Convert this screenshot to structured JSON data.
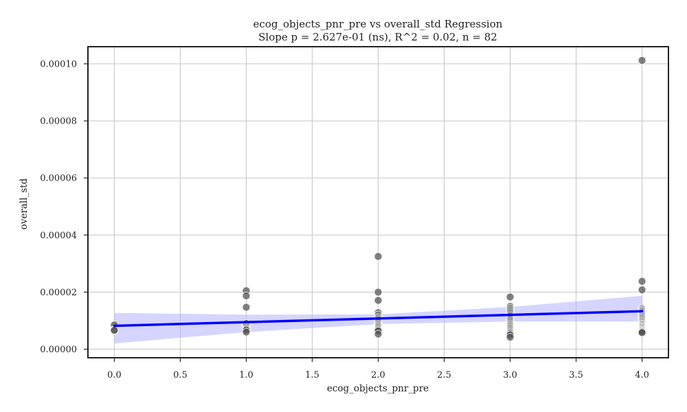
{
  "chart_data": {
    "type": "scatter",
    "title": "ecog_objects_pnr_pre vs overall_std Regression",
    "subtitle": "Slope p = 2.627e-01 (ns), R^2 = 0.02, n = 82",
    "xlabel": "ecog_objects_pnr_pre",
    "ylabel": "overall_std",
    "xlim": [
      -0.2,
      4.2
    ],
    "ylim": [
      -3e-06,
      0.000106
    ],
    "xticks": [
      "0.0",
      "0.5",
      "1.0",
      "1.5",
      "2.0",
      "2.5",
      "3.0",
      "3.5",
      "4.0"
    ],
    "yticks": [
      "0.00000",
      "0.00002",
      "0.00004",
      "0.00006",
      "0.00008",
      "0.00010"
    ],
    "grid": true,
    "colors": {
      "points": "#555555",
      "regression_line": "#0000ff",
      "confidence_band": "#b3b3ff",
      "grid": "#cccccc"
    },
    "points": [
      {
        "x": 0,
        "y": 8.5e-06
      },
      {
        "x": 0,
        "y": 6.8e-06
      },
      {
        "x": 0,
        "y": 6.6e-06
      },
      {
        "x": 1,
        "y": 2.05e-05
      },
      {
        "x": 1,
        "y": 1.87e-05
      },
      {
        "x": 1,
        "y": 1.47e-05
      },
      {
        "x": 1,
        "y": 9e-06
      },
      {
        "x": 1,
        "y": 8.2e-06
      },
      {
        "x": 1,
        "y": 7.6e-06
      },
      {
        "x": 1,
        "y": 7.1e-06
      },
      {
        "x": 1,
        "y": 6.7e-06
      },
      {
        "x": 1,
        "y": 6e-06
      },
      {
        "x": 2,
        "y": 3.25e-05
      },
      {
        "x": 2,
        "y": 2e-05
      },
      {
        "x": 2,
        "y": 1.71e-05
      },
      {
        "x": 2,
        "y": 1.28e-05
      },
      {
        "x": 2,
        "y": 1.2e-05
      },
      {
        "x": 2,
        "y": 1.13e-05
      },
      {
        "x": 2,
        "y": 1.08e-05
      },
      {
        "x": 2,
        "y": 1.03e-05
      },
      {
        "x": 2,
        "y": 9.8e-06
      },
      {
        "x": 2,
        "y": 9.3e-06
      },
      {
        "x": 2,
        "y": 8.8e-06
      },
      {
        "x": 2,
        "y": 8.4e-06
      },
      {
        "x": 2,
        "y": 8e-06
      },
      {
        "x": 2,
        "y": 7.6e-06
      },
      {
        "x": 2,
        "y": 7.2e-06
      },
      {
        "x": 2,
        "y": 6.8e-06
      },
      {
        "x": 2,
        "y": 6.4e-06
      },
      {
        "x": 2,
        "y": 5.3e-06
      },
      {
        "x": 3,
        "y": 1.83e-05
      },
      {
        "x": 3,
        "y": 1.5e-05
      },
      {
        "x": 3,
        "y": 1.44e-05
      },
      {
        "x": 3,
        "y": 1.38e-05
      },
      {
        "x": 3,
        "y": 1.32e-05
      },
      {
        "x": 3,
        "y": 1.26e-05
      },
      {
        "x": 3,
        "y": 1.2e-05
      },
      {
        "x": 3,
        "y": 1.15e-05
      },
      {
        "x": 3,
        "y": 1.1e-05
      },
      {
        "x": 3,
        "y": 1.05e-05
      },
      {
        "x": 3,
        "y": 1e-05
      },
      {
        "x": 3,
        "y": 9.5e-06
      },
      {
        "x": 3,
        "y": 9e-06
      },
      {
        "x": 3,
        "y": 8.6e-06
      },
      {
        "x": 3,
        "y": 8.2e-06
      },
      {
        "x": 3,
        "y": 7.8e-06
      },
      {
        "x": 3,
        "y": 7.4e-06
      },
      {
        "x": 3,
        "y": 7e-06
      },
      {
        "x": 3,
        "y": 6.6e-06
      },
      {
        "x": 3,
        "y": 6.2e-06
      },
      {
        "x": 3,
        "y": 5.8e-06
      },
      {
        "x": 3,
        "y": 5.4e-06
      },
      {
        "x": 3,
        "y": 5e-06
      },
      {
        "x": 3,
        "y": 4.2e-06
      },
      {
        "x": 4,
        "y": 0.0001012
      },
      {
        "x": 4,
        "y": 2.38e-05
      },
      {
        "x": 4,
        "y": 2.08e-05
      },
      {
        "x": 4,
        "y": 1.43e-05
      },
      {
        "x": 4,
        "y": 1.39e-05
      },
      {
        "x": 4,
        "y": 1.35e-05
      },
      {
        "x": 4,
        "y": 1.31e-05
      },
      {
        "x": 4,
        "y": 1.27e-05
      },
      {
        "x": 4,
        "y": 1.23e-05
      },
      {
        "x": 4,
        "y": 1.19e-05
      },
      {
        "x": 4,
        "y": 1.15e-05
      },
      {
        "x": 4,
        "y": 1.11e-05
      },
      {
        "x": 4,
        "y": 1.07e-05
      },
      {
        "x": 4,
        "y": 1.03e-05
      },
      {
        "x": 4,
        "y": 9.9e-06
      },
      {
        "x": 4,
        "y": 9.5e-06
      },
      {
        "x": 4,
        "y": 9.1e-06
      },
      {
        "x": 4,
        "y": 8.8e-06
      },
      {
        "x": 4,
        "y": 8.5e-06
      },
      {
        "x": 4,
        "y": 8.2e-06
      },
      {
        "x": 4,
        "y": 7.9e-06
      },
      {
        "x": 4,
        "y": 7.6e-06
      },
      {
        "x": 4,
        "y": 7.3e-06
      },
      {
        "x": 4,
        "y": 7e-06
      },
      {
        "x": 4,
        "y": 6.7e-06
      },
      {
        "x": 4,
        "y": 6.4e-06
      },
      {
        "x": 4,
        "y": 6.1e-06
      },
      {
        "x": 4,
        "y": 5.8e-06
      }
    ],
    "regression": {
      "x": [
        0,
        4
      ],
      "y": [
        8.2e-06,
        1.33e-05
      ]
    },
    "confidence_band": {
      "x": [
        0,
        1,
        2,
        3,
        4
      ],
      "lower": [
        2e-06,
        6e-06,
        8.8e-06,
        9.7e-06,
        9.7e-06
      ],
      "upper": [
        1.27e-05,
        1.21e-05,
        1.22e-05,
        1.48e-05,
        1.87e-05
      ]
    }
  }
}
